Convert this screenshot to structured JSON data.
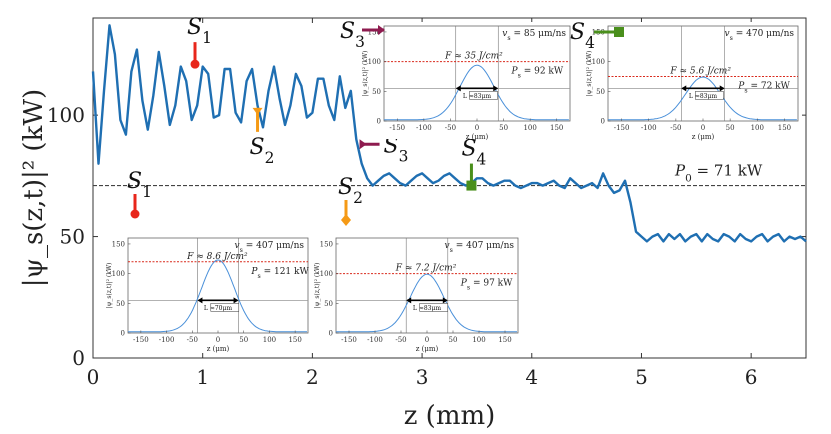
{
  "chart_data": {
    "type": "line",
    "xlabel": "z (mm)",
    "ylabel": "|ψ_s(z,t)|² (kW)",
    "xlim": [
      0,
      6.5
    ],
    "ylim": [
      0,
      140
    ],
    "x_ticks": [
      "0",
      "1",
      "2",
      "3",
      "4",
      "5",
      "6"
    ],
    "y_ticks": [
      "0",
      "50",
      "100"
    ],
    "colors": {
      "main": "#1f6fb2",
      "reference": "#444444",
      "s1": "#e8261b",
      "s2": "#f59a16",
      "s3": "#8e1b4f",
      "s4": "#4a8f1c",
      "threshold": "#d92a1c"
    },
    "reference_line": {
      "label": "P_0 = 71 kW",
      "value": 71
    },
    "series": [
      {
        "name": "|psi_s(z,t)|^2",
        "x": [
          0,
          0.05,
          0.1,
          0.15,
          0.2,
          0.25,
          0.3,
          0.35,
          0.4,
          0.45,
          0.5,
          0.55,
          0.6,
          0.65,
          0.7,
          0.75,
          0.8,
          0.85,
          0.9,
          0.95,
          1.0,
          1.05,
          1.1,
          1.15,
          1.2,
          1.25,
          1.3,
          1.35,
          1.4,
          1.45,
          1.5,
          1.55,
          1.6,
          1.65,
          1.7,
          1.75,
          1.8,
          1.85,
          1.9,
          1.95,
          2.0,
          2.05,
          2.1,
          2.15,
          2.2,
          2.25,
          2.3,
          2.35,
          2.4,
          2.45,
          2.5,
          2.55,
          2.6,
          2.65,
          2.7,
          2.75,
          2.8,
          2.85,
          2.9,
          2.95,
          3.0,
          3.05,
          3.1,
          3.15,
          3.2,
          3.25,
          3.3,
          3.35,
          3.4,
          3.45,
          3.5,
          3.55,
          3.6,
          3.65,
          3.7,
          3.75,
          3.8,
          3.85,
          3.9,
          3.95,
          4.0,
          4.05,
          4.1,
          4.15,
          4.2,
          4.25,
          4.3,
          4.35,
          4.4,
          4.45,
          4.5,
          4.55,
          4.6,
          4.65,
          4.7,
          4.75,
          4.8,
          4.85,
          4.9,
          4.95,
          5.0,
          5.05,
          5.1,
          5.15,
          5.2,
          5.25,
          5.3,
          5.35,
          5.4,
          5.45,
          5.5,
          5.55,
          5.6,
          5.65,
          5.7,
          5.75,
          5.8,
          5.85,
          5.9,
          5.95,
          6.0,
          6.05,
          6.1,
          6.15,
          6.2,
          6.25,
          6.3,
          6.35,
          6.4,
          6.45,
          6.5
        ],
        "y": [
          118,
          80,
          110,
          137,
          125,
          98,
          92,
          118,
          127,
          106,
          94,
          108,
          126,
          112,
          96,
          104,
          120,
          114,
          98,
          104,
          120,
          117,
          99,
          100,
          119,
          119,
          101,
          97,
          114,
          119,
          104,
          95,
          110,
          120,
          107,
          96,
          104,
          117,
          112,
          99,
          101,
          115,
          115,
          104,
          98,
          116,
          103,
          110,
          90,
          80,
          74,
          71,
          73,
          75,
          76,
          74,
          72,
          71,
          73,
          75,
          76,
          74,
          72,
          73,
          75,
          76,
          74,
          72,
          71,
          72,
          74,
          74,
          72,
          71,
          72,
          73,
          73,
          71,
          70,
          71,
          72,
          72,
          71,
          72,
          73,
          71,
          70,
          74,
          72,
          70,
          71,
          72,
          70,
          76,
          71,
          68,
          69,
          73,
          64,
          52,
          50,
          48,
          50,
          51,
          48,
          51,
          49,
          51,
          48,
          50,
          51,
          48,
          51,
          49,
          48,
          51,
          50,
          48,
          51,
          49,
          48,
          50,
          51,
          48,
          50,
          51,
          48,
          50,
          49,
          50,
          48
        ]
      }
    ],
    "markers": [
      {
        "label": "S",
        "sub": "1",
        "z": 0.93,
        "value": 121
      },
      {
        "label": "S",
        "sub": "2",
        "z": 1.5,
        "value": 103
      },
      {
        "label": "S",
        "sub": "3",
        "z": 2.43,
        "value": 88
      },
      {
        "label": "S",
        "sub": "4",
        "z": 3.45,
        "value": 71
      }
    ],
    "insets": [
      {
        "id": "S1",
        "label": "S",
        "sub": "1",
        "vs": "v_s = 407 μm/ns",
        "F": "F ≈ 8.6 J/cm²",
        "Ps": "P_s = 121 kW",
        "L": "L ≈70μm",
        "peak": 121,
        "threshold": 120,
        "ylabel": "|ψ_s(z,t)|² (kW)",
        "xlabel": "z (μm)",
        "xticks": [
          "-150",
          "-100",
          "-50",
          "0",
          "50",
          "100",
          "150"
        ],
        "yticks": [
          "0",
          "50",
          "100",
          "150"
        ]
      },
      {
        "id": "S2",
        "label": "S",
        "sub": "2",
        "vs": "v_s = 407 μm/ns",
        "F": "F ≈ 7.2 J/cm²",
        "Ps": "P_s = 97 kW",
        "L": "L ≈83μm",
        "peak": 97,
        "threshold": 100,
        "ylabel": "|ψ_s(z,t)|² (kW)",
        "xlabel": "z (μm)",
        "xticks": [
          "-150",
          "-100",
          "-50",
          "0",
          "50",
          "100",
          "150"
        ],
        "yticks": [
          "0",
          "50",
          "100",
          "150"
        ]
      },
      {
        "id": "S3",
        "label": "S",
        "sub": "3",
        "vs": "v_s = 85 μm/ns",
        "F": "F ≈ 35 J/cm²",
        "Ps": "P_s = 92 kW",
        "L": "L ≈83μm",
        "peak": 92,
        "threshold": 100,
        "ylabel": "|ψ_s(z,t)|² (kW)",
        "xlabel": "z (μm)",
        "xticks": [
          "-150",
          "-100",
          "-50",
          "0",
          "50",
          "100",
          "150"
        ],
        "yticks": [
          "0",
          "50",
          "100",
          "150"
        ]
      },
      {
        "id": "S4",
        "label": "S",
        "sub": "4",
        "vs": "v_s = 470 μm/ns",
        "F": "F ≈ 5.6 J/cm²",
        "Ps": "P_s = 72 kW",
        "L": "L ≈83μm",
        "peak": 72,
        "threshold": 75,
        "ylabel": "|ψ_s(z,t)|² (kW)",
        "xlabel": "z (μm)",
        "xticks": [
          "-150",
          "-100",
          "-50",
          "0",
          "50",
          "100",
          "150"
        ],
        "yticks": [
          "0",
          "50",
          "100",
          "150"
        ]
      }
    ]
  }
}
